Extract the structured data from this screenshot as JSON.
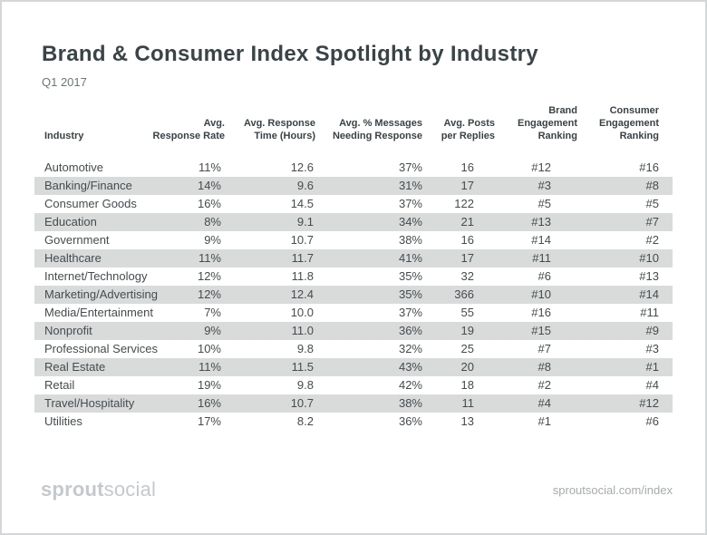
{
  "header": {
    "title": "Brand & Consumer Index Spotlight by Industry",
    "subtitle": "Q1 2017"
  },
  "table": {
    "columns": [
      {
        "id": "industry",
        "label": "Industry"
      },
      {
        "id": "avg-response-rate",
        "label": "Avg.\nResponse Rate"
      },
      {
        "id": "avg-response-time",
        "label": "Avg. Response\nTime (Hours)"
      },
      {
        "id": "avg-pct-messages-needing-response",
        "label": "Avg. % Messages\nNeeding Response"
      },
      {
        "id": "avg-posts-per-replies",
        "label": "Avg. Posts\nper Replies"
      },
      {
        "id": "brand-engagement-ranking",
        "label": "Brand\nEngagement\nRanking"
      },
      {
        "id": "consumer-engagement-ranking",
        "label": "Consumer\nEngagement\nRanking"
      }
    ]
  },
  "chart_data": {
    "type": "table",
    "title": "Brand & Consumer Index Spotlight by Industry",
    "subtitle": "Q1 2017",
    "columns": [
      "Industry",
      "Avg. Response Rate",
      "Avg. Response Time (Hours)",
      "Avg. % Messages Needing Response",
      "Avg. Posts per Replies",
      "Brand Engagement Ranking",
      "Consumer Engagement Ranking"
    ],
    "rows": [
      [
        "Automotive",
        "11%",
        "12.6",
        "37%",
        "16",
        "#12",
        "#16"
      ],
      [
        "Banking/Finance",
        "14%",
        "9.6",
        "31%",
        "17",
        "#3",
        "#8"
      ],
      [
        "Consumer Goods",
        "16%",
        "14.5",
        "37%",
        "122",
        "#5",
        "#5"
      ],
      [
        "Education",
        "8%",
        "9.1",
        "34%",
        "21",
        "#13",
        "#7"
      ],
      [
        "Government",
        "9%",
        "10.7",
        "38%",
        "16",
        "#14",
        "#2"
      ],
      [
        "Healthcare",
        "11%",
        "11.7",
        "41%",
        "17",
        "#11",
        "#10"
      ],
      [
        "Internet/Technology",
        "12%",
        "11.8",
        "35%",
        "32",
        "#6",
        "#13"
      ],
      [
        "Marketing/Advertising",
        "12%",
        "12.4",
        "35%",
        "366",
        "#10",
        "#14"
      ],
      [
        "Media/Entertainment",
        "7%",
        "10.0",
        "37%",
        "55",
        "#16",
        "#11"
      ],
      [
        "Nonprofit",
        "9%",
        "11.0",
        "36%",
        "19",
        "#15",
        "#9"
      ],
      [
        "Professional Services",
        "10%",
        "9.8",
        "32%",
        "25",
        "#7",
        "#3"
      ],
      [
        "Real Estate",
        "11%",
        "11.5",
        "43%",
        "20",
        "#8",
        "#1"
      ],
      [
        "Retail",
        "19%",
        "9.8",
        "42%",
        "18",
        "#2",
        "#4"
      ],
      [
        "Travel/Hospitality",
        "16%",
        "10.7",
        "38%",
        "11",
        "#4",
        "#12"
      ],
      [
        "Utilities",
        "17%",
        "8.2",
        "36%",
        "13",
        "#1",
        "#6"
      ]
    ]
  },
  "footer": {
    "logo_bold": "sprout",
    "logo_light": "social",
    "url": "sproutsocial.com/index"
  },
  "colors": {
    "title": "#3a4446",
    "subtitle": "#6c7578",
    "header_text": "#3a4245",
    "cell_text": "#454b4e",
    "row_stripe": "#d9dbdb",
    "logo": "#c5c9cb",
    "footer_url": "#a6abad",
    "page_border": "#d4d7d8"
  }
}
